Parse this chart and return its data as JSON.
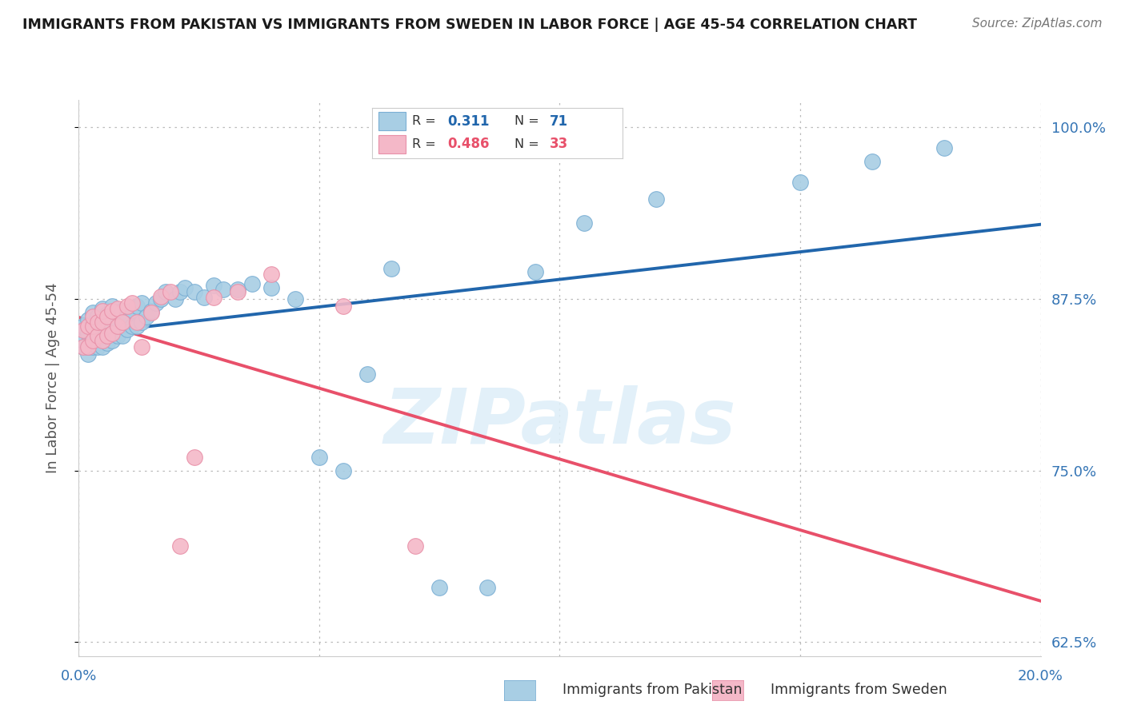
{
  "title": "IMMIGRANTS FROM PAKISTAN VS IMMIGRANTS FROM SWEDEN IN LABOR FORCE | AGE 45-54 CORRELATION CHART",
  "source": "Source: ZipAtlas.com",
  "ylabel": "In Labor Force | Age 45-54",
  "xlim": [
    0.0,
    0.2
  ],
  "ylim": [
    0.615,
    1.02
  ],
  "yticks": [
    0.625,
    0.75,
    0.875,
    1.0
  ],
  "ytick_labels": [
    "62.5%",
    "75.0%",
    "87.5%",
    "100.0%"
  ],
  "xticks": [
    0.0,
    0.05,
    0.1,
    0.15,
    0.2
  ],
  "xtick_labels": [
    "0.0%",
    "",
    "",
    "",
    "20.0%"
  ],
  "r_pakistan": 0.311,
  "n_pakistan": 71,
  "r_sweden": 0.486,
  "n_sweden": 33,
  "color_pakistan": "#A8CEE4",
  "color_sweden": "#F4B8C8",
  "line_color_pakistan": "#2166AC",
  "line_color_sweden": "#E8506A",
  "watermark": "ZIPatlas",
  "pakistan_x": [
    0.001,
    0.001,
    0.001,
    0.002,
    0.002,
    0.002,
    0.002,
    0.003,
    0.003,
    0.003,
    0.003,
    0.003,
    0.004,
    0.004,
    0.004,
    0.004,
    0.005,
    0.005,
    0.005,
    0.005,
    0.005,
    0.006,
    0.006,
    0.006,
    0.006,
    0.007,
    0.007,
    0.007,
    0.007,
    0.008,
    0.008,
    0.008,
    0.009,
    0.009,
    0.009,
    0.01,
    0.01,
    0.011,
    0.011,
    0.012,
    0.012,
    0.013,
    0.013,
    0.014,
    0.015,
    0.016,
    0.017,
    0.018,
    0.02,
    0.021,
    0.022,
    0.024,
    0.026,
    0.028,
    0.03,
    0.033,
    0.036,
    0.04,
    0.045,
    0.05,
    0.055,
    0.06,
    0.065,
    0.075,
    0.085,
    0.095,
    0.105,
    0.12,
    0.15,
    0.165,
    0.18
  ],
  "pakistan_y": [
    0.84,
    0.845,
    0.855,
    0.835,
    0.84,
    0.85,
    0.86,
    0.84,
    0.845,
    0.855,
    0.86,
    0.865,
    0.84,
    0.85,
    0.855,
    0.862,
    0.84,
    0.848,
    0.855,
    0.862,
    0.868,
    0.843,
    0.85,
    0.857,
    0.864,
    0.845,
    0.855,
    0.862,
    0.87,
    0.848,
    0.857,
    0.865,
    0.848,
    0.858,
    0.866,
    0.853,
    0.862,
    0.855,
    0.867,
    0.855,
    0.87,
    0.858,
    0.872,
    0.862,
    0.866,
    0.872,
    0.875,
    0.88,
    0.875,
    0.88,
    0.883,
    0.88,
    0.876,
    0.885,
    0.882,
    0.882,
    0.886,
    0.883,
    0.875,
    0.76,
    0.75,
    0.82,
    0.897,
    0.665,
    0.665,
    0.895,
    0.93,
    0.948,
    0.96,
    0.975,
    0.985
  ],
  "sweden_x": [
    0.001,
    0.001,
    0.002,
    0.002,
    0.003,
    0.003,
    0.003,
    0.004,
    0.004,
    0.005,
    0.005,
    0.005,
    0.006,
    0.006,
    0.007,
    0.007,
    0.008,
    0.008,
    0.009,
    0.01,
    0.011,
    0.012,
    0.013,
    0.015,
    0.017,
    0.019,
    0.021,
    0.024,
    0.028,
    0.033,
    0.04,
    0.055,
    0.07
  ],
  "sweden_y": [
    0.84,
    0.852,
    0.84,
    0.855,
    0.845,
    0.855,
    0.862,
    0.848,
    0.858,
    0.845,
    0.858,
    0.866,
    0.848,
    0.862,
    0.85,
    0.866,
    0.855,
    0.868,
    0.858,
    0.87,
    0.872,
    0.858,
    0.84,
    0.865,
    0.877,
    0.88,
    0.695,
    0.76,
    0.876,
    0.88,
    0.893,
    0.87,
    0.695
  ]
}
